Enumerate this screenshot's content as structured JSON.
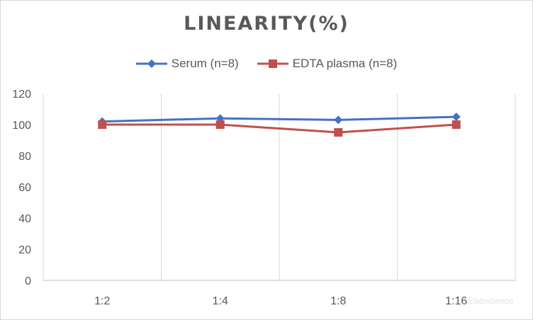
{
  "chart_data": {
    "type": "line",
    "title": "LINEARITY(%)",
    "categories": [
      "1:2",
      "1:4",
      "1:8",
      "1:16"
    ],
    "ylim": [
      0,
      120
    ],
    "yticks": [
      0,
      20,
      40,
      60,
      80,
      100,
      120
    ],
    "grid": "vertical",
    "legend_position": "top",
    "series": [
      {
        "name": "Serum (n=8)",
        "values": [
          102,
          104,
          103,
          105
        ],
        "color": "#4472c4",
        "marker": "diamond"
      },
      {
        "name": "EDTA plasma (n=8)",
        "values": [
          100,
          100,
          95,
          100
        ],
        "color": "#c0504d",
        "marker": "square"
      }
    ]
  },
  "watermark": "Elabscience"
}
